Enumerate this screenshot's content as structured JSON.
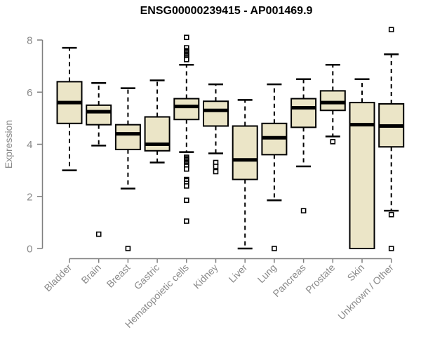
{
  "header": {
    "title": "ENSG00000239415 - AP001469.9"
  },
  "chart_data": {
    "type": "boxplot",
    "title": "ENSG00000239415 - AP001469.9",
    "xlabel": "",
    "ylabel": "Expression",
    "ylim": [
      0,
      8.5
    ],
    "yticks": [
      0,
      2,
      4,
      6,
      8
    ],
    "grid": false,
    "legend": "none",
    "style": {
      "box_fill": "#EBE5C7",
      "box_border": "#000000",
      "axis_color": "#7F7F7F",
      "label_color": "#8A8A8A",
      "background": "#FFFFFF"
    },
    "categories": [
      "Bladder",
      "Brain",
      "Breast",
      "Gastric",
      "Hematopoietic cells",
      "Kidney",
      "Liver",
      "Lung",
      "Pancreas",
      "Prostate",
      "Skin",
      "Unknown / Other"
    ],
    "series": [
      {
        "category": "Bladder",
        "whisker_low": 3.0,
        "q1": 4.8,
        "median": 5.6,
        "q3": 6.4,
        "whisker_high": 7.7,
        "outliers": []
      },
      {
        "category": "Brain",
        "whisker_low": 3.95,
        "q1": 4.75,
        "median": 5.25,
        "q3": 5.5,
        "whisker_high": 6.35,
        "outliers": [
          0.55
        ]
      },
      {
        "category": "Breast",
        "whisker_low": 2.3,
        "q1": 3.8,
        "median": 4.4,
        "q3": 4.75,
        "whisker_high": 6.15,
        "outliers": [
          0.0
        ]
      },
      {
        "category": "Gastric",
        "whisker_low": 3.3,
        "q1": 3.75,
        "median": 4.0,
        "q3": 5.05,
        "whisker_high": 6.45,
        "outliers": []
      },
      {
        "category": "Hematopoietic cells",
        "whisker_low": 3.7,
        "q1": 4.95,
        "median": 5.45,
        "q3": 5.75,
        "whisker_high": 7.05,
        "outliers": [
          8.1,
          7.7,
          7.6,
          7.55,
          7.5,
          7.45,
          7.4,
          7.35,
          7.3,
          7.25,
          3.5,
          3.45,
          3.4,
          3.35,
          3.3,
          3.25,
          3.2,
          3.15,
          3.05,
          2.65,
          2.6,
          2.5,
          2.4,
          1.85,
          1.05
        ]
      },
      {
        "category": "Kidney",
        "whisker_low": 3.65,
        "q1": 4.7,
        "median": 5.3,
        "q3": 5.65,
        "whisker_high": 6.3,
        "outliers": [
          3.3,
          3.15,
          2.95
        ]
      },
      {
        "category": "Liver",
        "whisker_low": 0.0,
        "q1": 2.65,
        "median": 3.4,
        "q3": 4.7,
        "whisker_high": 5.7,
        "outliers": []
      },
      {
        "category": "Lung",
        "whisker_low": 1.85,
        "q1": 3.6,
        "median": 4.25,
        "q3": 4.8,
        "whisker_high": 6.3,
        "outliers": [
          0.0
        ]
      },
      {
        "category": "Pancreas",
        "whisker_low": 3.15,
        "q1": 4.65,
        "median": 5.4,
        "q3": 5.75,
        "whisker_high": 6.5,
        "outliers": [
          1.45
        ]
      },
      {
        "category": "Prostate",
        "whisker_low": 4.3,
        "q1": 5.3,
        "median": 5.6,
        "q3": 6.05,
        "whisker_high": 7.05,
        "outliers": [
          4.1
        ]
      },
      {
        "category": "Skin",
        "whisker_low": 0.0,
        "q1": 0.0,
        "median": 4.75,
        "q3": 5.6,
        "whisker_high": 6.5,
        "outliers": []
      },
      {
        "category": "Unknown / Other",
        "whisker_low": 1.45,
        "q1": 3.9,
        "median": 4.7,
        "q3": 5.55,
        "whisker_high": 7.45,
        "outliers": [
          8.4,
          1.3,
          0.0
        ]
      }
    ]
  }
}
